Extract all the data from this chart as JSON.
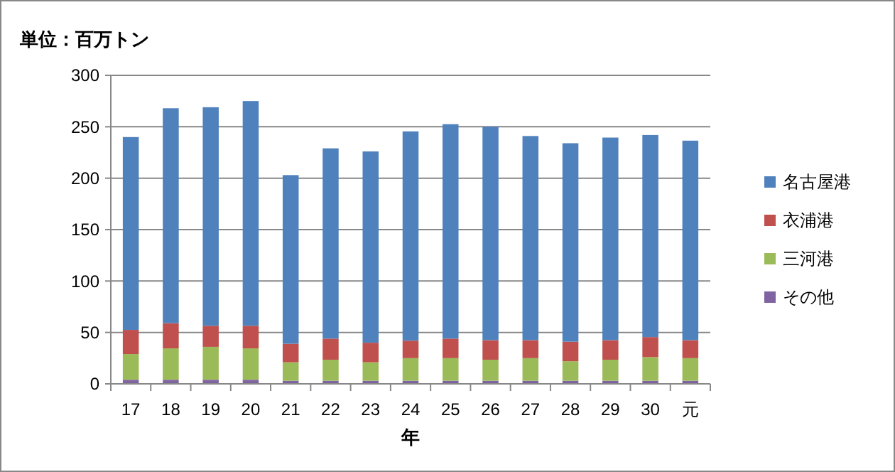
{
  "chart_data": {
    "type": "bar",
    "stacked": true,
    "title": "単位：百万トン",
    "xlabel": "年",
    "categories": [
      "17",
      "18",
      "19",
      "20",
      "21",
      "22",
      "23",
      "24",
      "25",
      "26",
      "27",
      "28",
      "29",
      "30",
      "元"
    ],
    "series": [
      {
        "name": "その他",
        "color": "#8064a2",
        "values": [
          4,
          4,
          4,
          4,
          3,
          3,
          3,
          3,
          3,
          3,
          3,
          3,
          3,
          3,
          3
        ]
      },
      {
        "name": "三河港",
        "color": "#9bbb59",
        "values": [
          25,
          30.5,
          32,
          30.5,
          18,
          20.5,
          18,
          22,
          22,
          20.5,
          22,
          19,
          20.5,
          23,
          22
        ]
      },
      {
        "name": "衣浦港",
        "color": "#c0504d",
        "values": [
          23.5,
          24.5,
          20.5,
          22,
          18,
          20.5,
          19,
          17,
          19,
          19,
          17.5,
          19,
          19,
          19.5,
          17.5
        ]
      },
      {
        "name": "名古屋港",
        "color": "#4f81bd",
        "values": [
          187.5,
          209,
          212.5,
          218.5,
          164,
          185,
          186,
          203.5,
          208.5,
          207.5,
          198.5,
          193,
          197,
          196.5,
          194
        ]
      }
    ],
    "ylim": [
      0,
      300
    ],
    "yticks": [
      0,
      50,
      100,
      150,
      200,
      250,
      300
    ],
    "grid": "y",
    "legend": "right"
  }
}
